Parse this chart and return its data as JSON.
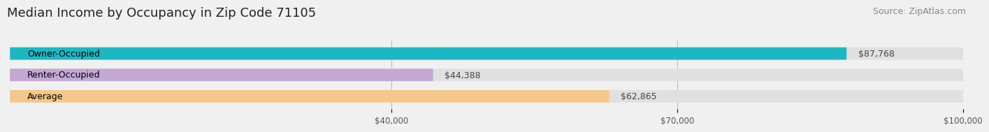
{
  "title": "Median Income by Occupancy in Zip Code 71105",
  "source": "Source: ZipAtlas.com",
  "categories": [
    "Owner-Occupied",
    "Renter-Occupied",
    "Average"
  ],
  "values": [
    87768,
    44388,
    62865
  ],
  "labels": [
    "$87,768",
    "$44,388",
    "$62,865"
  ],
  "bar_colors": [
    "#1bb8c4",
    "#c4a8d4",
    "#f5c88a"
  ],
  "bar_bg_color": "#e0e0e0",
  "xlim": [
    0,
    100000
  ],
  "xticks": [
    40000,
    70000,
    100000
  ],
  "xtick_labels": [
    "$40,000",
    "$70,000",
    "$100,000"
  ],
  "title_fontsize": 13,
  "source_fontsize": 9,
  "label_fontsize": 9,
  "category_fontsize": 9,
  "bar_height": 0.58,
  "background_color": "#f0f0f0"
}
